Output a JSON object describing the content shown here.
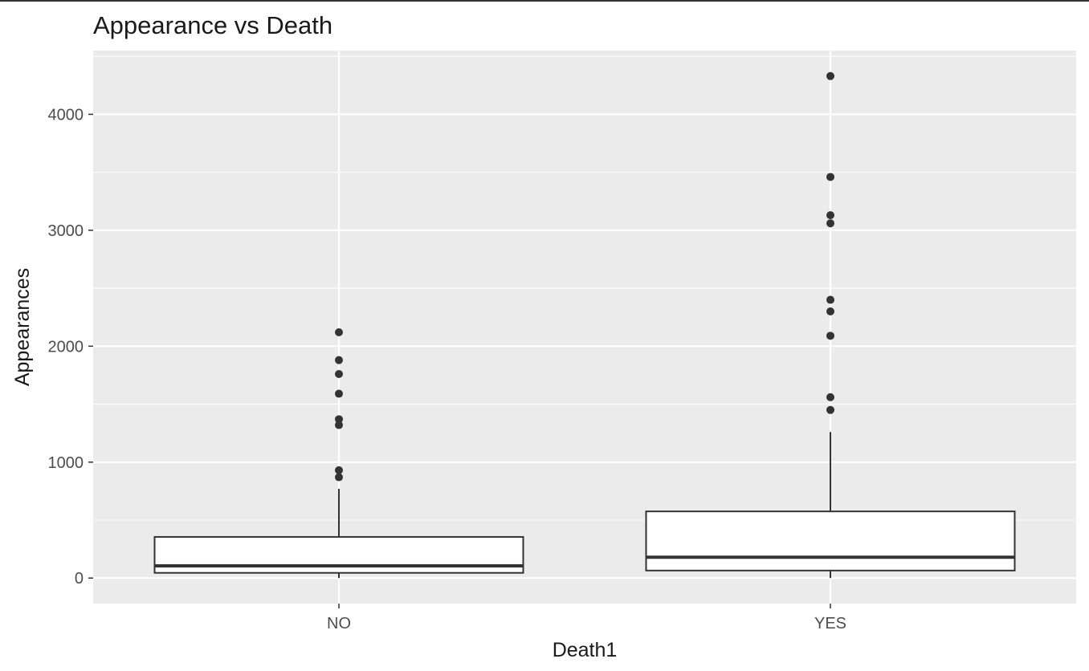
{
  "chart_data": {
    "type": "boxplot",
    "title": "Appearance vs Death",
    "xlabel": "Death1",
    "ylabel": "Appearances",
    "categories": [
      "NO",
      "YES"
    ],
    "ylim": [
      -220,
      4550
    ],
    "y_ticks": [
      0,
      1000,
      2000,
      3000,
      4000
    ],
    "y_tick_labels": [
      "0",
      "1000",
      "2000",
      "3000",
      "4000"
    ],
    "grid": true,
    "boxes": [
      {
        "category": "NO",
        "whisker_low": 0,
        "q1": 45,
        "median": 105,
        "q3": 355,
        "whisker_high": 770,
        "outliers": [
          870,
          930,
          1320,
          1370,
          1590,
          1760,
          1880,
          2120
        ]
      },
      {
        "category": "YES",
        "whisker_low": 0,
        "q1": 65,
        "median": 180,
        "q3": 575,
        "whisker_high": 1260,
        "outliers": [
          1450,
          1560,
          2090,
          2300,
          2400,
          3060,
          3130,
          3460,
          4330
        ]
      }
    ],
    "colors": {
      "panel": "#ebebeb",
      "grid": "#ffffff",
      "box_fill": "#ffffff",
      "box_line": "#333333",
      "outlier": "#333333"
    }
  }
}
